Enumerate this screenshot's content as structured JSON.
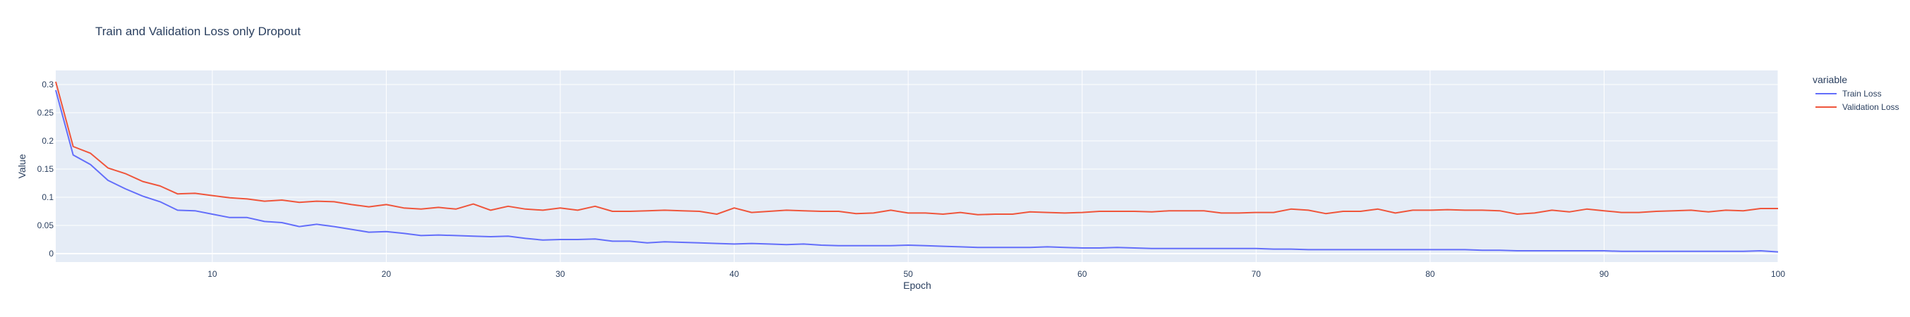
{
  "chart_data": {
    "type": "line",
    "title": "Train and Validation Loss only Dropout",
    "xlabel": "Epoch",
    "ylabel": "Value",
    "xlim": [
      1,
      100
    ],
    "ylim": [
      -0.015,
      0.325
    ],
    "xticks": [
      10,
      20,
      30,
      40,
      50,
      60,
      70,
      80,
      90,
      100
    ],
    "yticks": [
      0,
      0.05,
      0.1,
      0.15,
      0.2,
      0.25,
      0.3
    ],
    "ytick_labels": [
      "0",
      "0.05",
      "0.1",
      "0.15",
      "0.2",
      "0.25",
      "0.3"
    ],
    "legend_title": "variable",
    "legend_position": "right",
    "grid": true,
    "background_color": "#e5ecf6",
    "x": [
      1,
      2,
      3,
      4,
      5,
      6,
      7,
      8,
      9,
      10,
      11,
      12,
      13,
      14,
      15,
      16,
      17,
      18,
      19,
      20,
      21,
      22,
      23,
      24,
      25,
      26,
      27,
      28,
      29,
      30,
      31,
      32,
      33,
      34,
      35,
      36,
      37,
      38,
      39,
      40,
      41,
      42,
      43,
      44,
      45,
      46,
      47,
      48,
      49,
      50,
      51,
      52,
      53,
      54,
      55,
      56,
      57,
      58,
      59,
      60,
      61,
      62,
      63,
      64,
      65,
      66,
      67,
      68,
      69,
      70,
      71,
      72,
      73,
      74,
      75,
      76,
      77,
      78,
      79,
      80,
      81,
      82,
      83,
      84,
      85,
      86,
      87,
      88,
      89,
      90,
      91,
      92,
      93,
      94,
      95,
      96,
      97,
      98,
      99,
      100
    ],
    "series": [
      {
        "name": "Train Loss",
        "color": "#636efa",
        "values": [
          0.29,
          0.175,
          0.158,
          0.13,
          0.115,
          0.102,
          0.092,
          0.077,
          0.076,
          0.07,
          0.064,
          0.064,
          0.057,
          0.055,
          0.048,
          0.052,
          0.048,
          0.043,
          0.038,
          0.039,
          0.036,
          0.032,
          0.033,
          0.032,
          0.031,
          0.03,
          0.031,
          0.027,
          0.024,
          0.025,
          0.025,
          0.026,
          0.022,
          0.022,
          0.019,
          0.021,
          0.02,
          0.019,
          0.018,
          0.017,
          0.018,
          0.017,
          0.016,
          0.017,
          0.015,
          0.014,
          0.014,
          0.014,
          0.014,
          0.015,
          0.014,
          0.013,
          0.012,
          0.011,
          0.011,
          0.011,
          0.011,
          0.012,
          0.011,
          0.01,
          0.01,
          0.011,
          0.01,
          0.009,
          0.009,
          0.009,
          0.009,
          0.009,
          0.009,
          0.009,
          0.008,
          0.008,
          0.007,
          0.007,
          0.007,
          0.007,
          0.007,
          0.007,
          0.007,
          0.007,
          0.007,
          0.007,
          0.006,
          0.006,
          0.005,
          0.005,
          0.005,
          0.005,
          0.005,
          0.005,
          0.004,
          0.004,
          0.004,
          0.004,
          0.004,
          0.004,
          0.004,
          0.004,
          0.005,
          0.003
        ]
      },
      {
        "name": "Validation Loss",
        "color": "#ef553b",
        "values": [
          0.305,
          0.19,
          0.178,
          0.152,
          0.142,
          0.128,
          0.12,
          0.106,
          0.107,
          0.103,
          0.099,
          0.097,
          0.093,
          0.095,
          0.091,
          0.093,
          0.092,
          0.087,
          0.083,
          0.087,
          0.081,
          0.079,
          0.082,
          0.079,
          0.088,
          0.077,
          0.084,
          0.079,
          0.077,
          0.081,
          0.077,
          0.084,
          0.075,
          0.075,
          0.076,
          0.077,
          0.076,
          0.075,
          0.07,
          0.081,
          0.073,
          0.075,
          0.077,
          0.076,
          0.075,
          0.075,
          0.071,
          0.072,
          0.077,
          0.072,
          0.072,
          0.07,
          0.073,
          0.069,
          0.07,
          0.07,
          0.074,
          0.073,
          0.072,
          0.073,
          0.075,
          0.075,
          0.075,
          0.074,
          0.076,
          0.076,
          0.076,
          0.072,
          0.072,
          0.073,
          0.073,
          0.079,
          0.077,
          0.071,
          0.075,
          0.075,
          0.079,
          0.072,
          0.077,
          0.077,
          0.078,
          0.077,
          0.077,
          0.076,
          0.07,
          0.072,
          0.077,
          0.074,
          0.079,
          0.076,
          0.073,
          0.073,
          0.075,
          0.076,
          0.077,
          0.074,
          0.077,
          0.076,
          0.08,
          0.08
        ]
      }
    ]
  }
}
